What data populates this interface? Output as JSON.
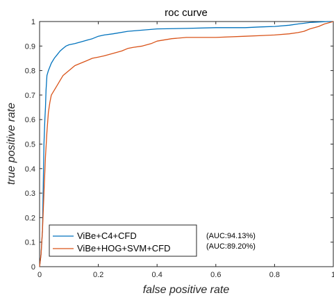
{
  "chart_data": {
    "type": "line",
    "title": "roc curve",
    "xlabel": "false positive rate",
    "ylabel": "true positive rate",
    "xlim": [
      0,
      1
    ],
    "ylim": [
      0,
      1
    ],
    "xticks": [
      "0",
      "0.2",
      "0.4",
      "0.6",
      "0.8",
      "1"
    ],
    "yticks": [
      "0",
      "0.1",
      "0.2",
      "0.3",
      "0.4",
      "0.5",
      "0.6",
      "0.7",
      "0.8",
      "0.9",
      "1"
    ],
    "grid": false,
    "legend_position": "bottom-left",
    "series": [
      {
        "name": "ViBe+C4+CFD",
        "color": "#0072BD",
        "x": [
          0,
          0.005,
          0.01,
          0.012,
          0.015,
          0.018,
          0.02,
          0.022,
          0.025,
          0.03,
          0.04,
          0.05,
          0.06,
          0.07,
          0.08,
          0.09,
          0.1,
          0.12,
          0.15,
          0.18,
          0.2,
          0.22,
          0.25,
          0.3,
          0.35,
          0.4,
          0.5,
          0.6,
          0.7,
          0.75,
          0.8,
          0.85,
          0.88,
          0.9,
          0.92,
          0.95,
          0.98,
          1.0
        ],
        "y": [
          0,
          0.05,
          0.15,
          0.3,
          0.5,
          0.6,
          0.65,
          0.72,
          0.78,
          0.8,
          0.83,
          0.85,
          0.865,
          0.88,
          0.89,
          0.9,
          0.905,
          0.91,
          0.92,
          0.93,
          0.94,
          0.945,
          0.95,
          0.96,
          0.965,
          0.97,
          0.972,
          0.975,
          0.975,
          0.978,
          0.98,
          0.985,
          0.99,
          0.993,
          0.996,
          0.998,
          1.0,
          1.0
        ]
      },
      {
        "name": "ViBe+HOG+SVM+CFD",
        "color": "#D95319",
        "x": [
          0,
          0.005,
          0.01,
          0.015,
          0.02,
          0.025,
          0.03,
          0.035,
          0.04,
          0.05,
          0.06,
          0.07,
          0.08,
          0.09,
          0.1,
          0.12,
          0.14,
          0.16,
          0.18,
          0.2,
          0.22,
          0.25,
          0.28,
          0.3,
          0.32,
          0.35,
          0.38,
          0.4,
          0.45,
          0.5,
          0.6,
          0.7,
          0.8,
          0.85,
          0.88,
          0.9,
          0.92,
          0.95,
          0.97,
          1.0
        ],
        "y": [
          0,
          0.05,
          0.15,
          0.3,
          0.45,
          0.55,
          0.63,
          0.67,
          0.7,
          0.72,
          0.74,
          0.76,
          0.78,
          0.79,
          0.8,
          0.82,
          0.83,
          0.84,
          0.85,
          0.855,
          0.86,
          0.87,
          0.88,
          0.89,
          0.895,
          0.9,
          0.91,
          0.92,
          0.93,
          0.935,
          0.935,
          0.94,
          0.945,
          0.95,
          0.955,
          0.96,
          0.97,
          0.98,
          0.99,
          1.0
        ]
      }
    ],
    "annotations": [
      "(AUC:94.13%)",
      "(AUC:89.20%)"
    ]
  }
}
